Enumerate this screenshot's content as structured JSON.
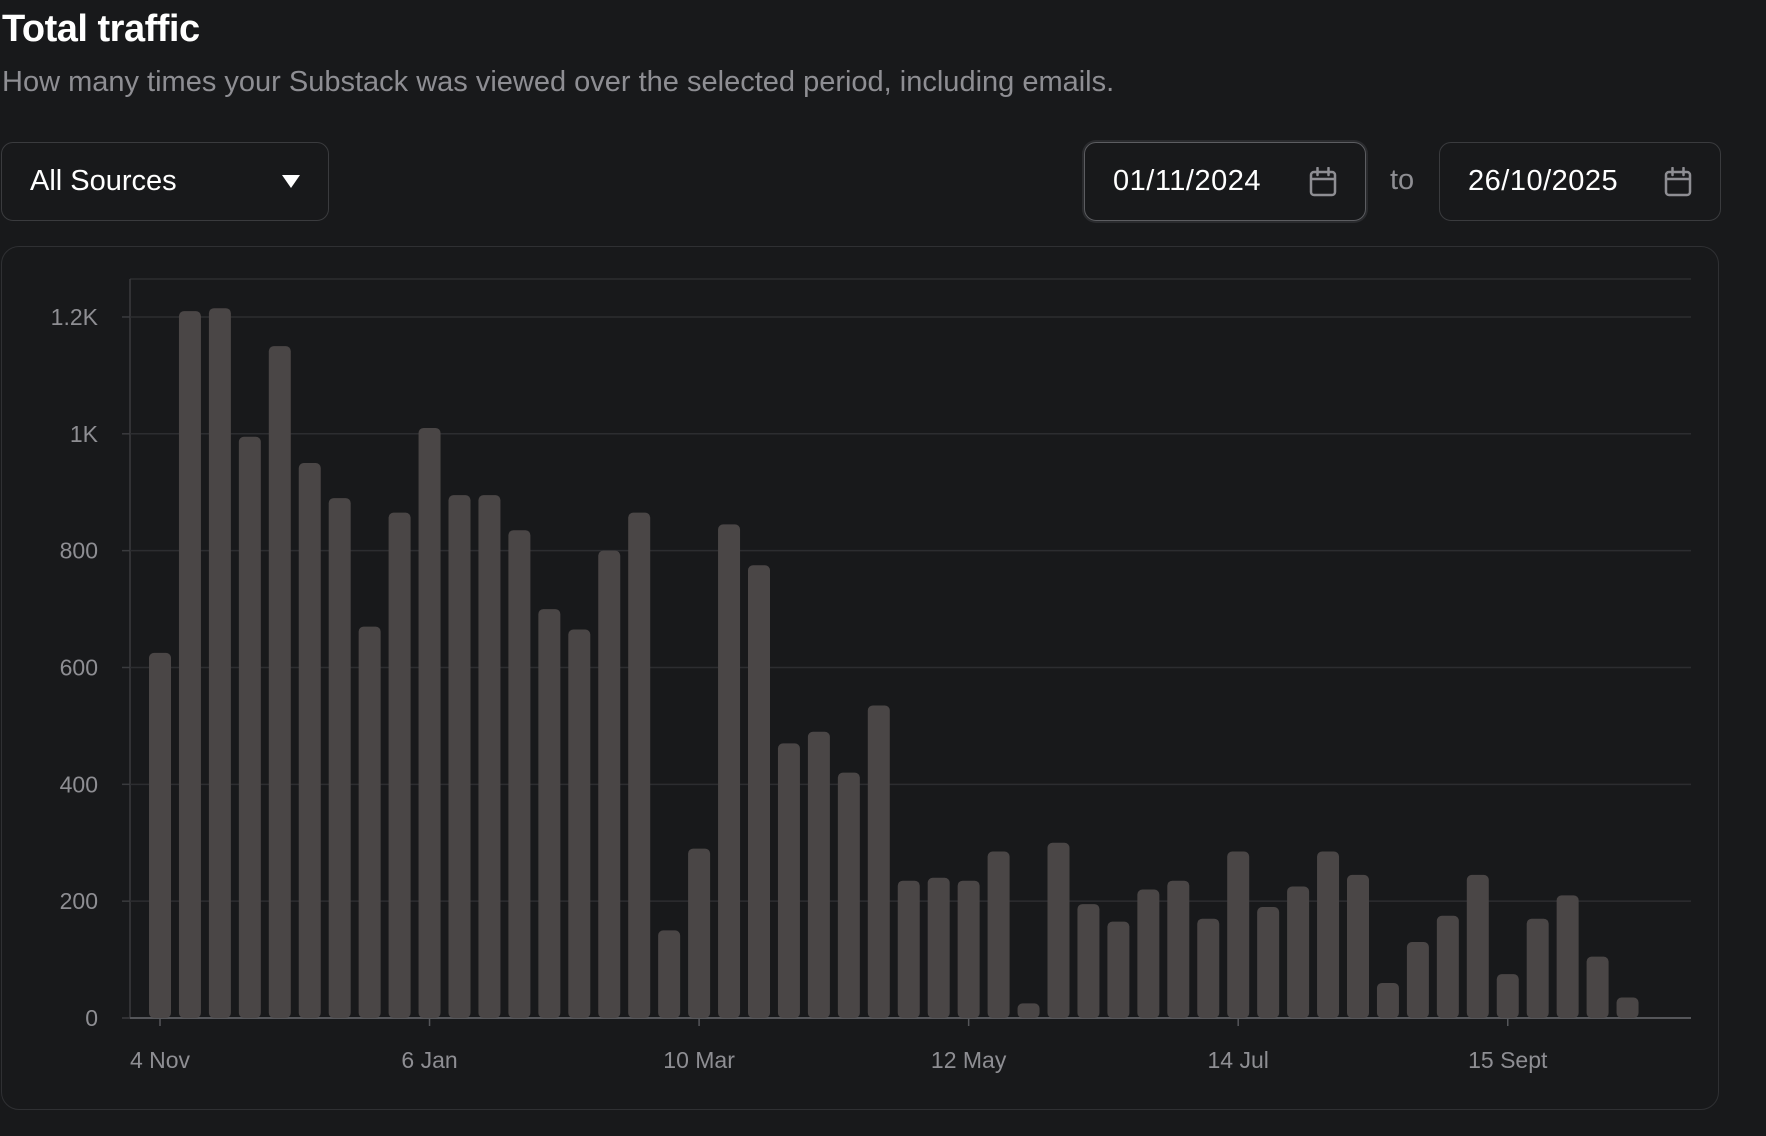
{
  "header": {
    "title": "Total traffic",
    "subtitle": "How many times your Substack was viewed over the selected period, including emails."
  },
  "filters": {
    "source": {
      "selected": "All Sources",
      "icon": "chevron-down-icon"
    },
    "start_date": "01/11/2024",
    "range_separator": "to",
    "end_date": "26/10/2025",
    "date_icon": "calendar-icon"
  },
  "colors": {
    "background": "#18191b",
    "bar": "#4a4646",
    "grid": "#2c2d30",
    "axis_text": "#8e8e93"
  },
  "chart_data": {
    "type": "bar",
    "x_tick_labels": [
      "4 Nov",
      "6 Jan",
      "10 Mar",
      "12 May",
      "14 Jul",
      "15 Sept"
    ],
    "y_tick_labels": [
      "0",
      "200",
      "400",
      "600",
      "800",
      "1K",
      "1.2K"
    ],
    "ylim": [
      0,
      1200
    ],
    "grid": true,
    "series": [
      {
        "values": [
          625,
          1210,
          1215,
          995,
          1150,
          950,
          890,
          670,
          865,
          1010,
          895,
          895,
          835,
          700,
          665,
          800,
          865,
          150,
          290,
          845,
          775,
          470,
          490,
          420,
          535,
          235,
          240,
          235,
          285,
          25,
          300,
          195,
          165,
          220,
          235,
          170,
          285,
          190,
          225,
          285,
          245,
          60,
          130,
          175,
          245,
          75,
          170,
          210,
          105,
          35
        ]
      }
    ]
  }
}
